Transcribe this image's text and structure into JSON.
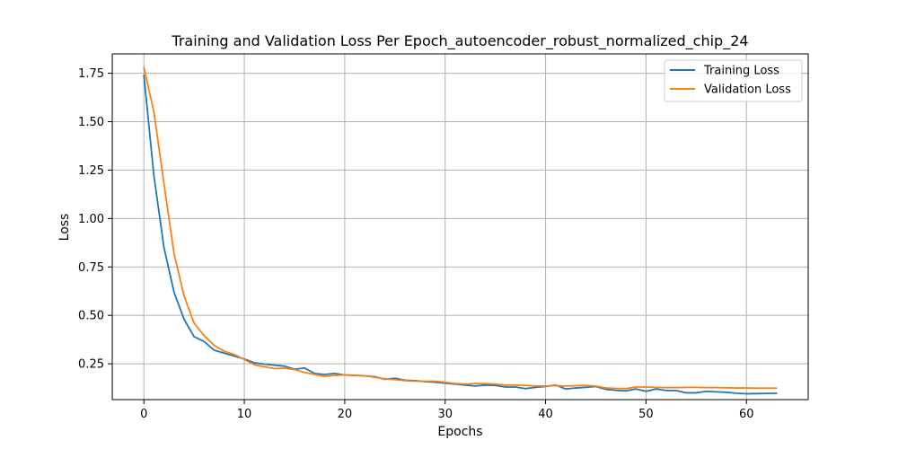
{
  "chart_data": {
    "type": "line",
    "title": "Training and Validation Loss Per Epoch_autoencoder_robust_normalized_chip_24",
    "xlabel": "Epochs",
    "ylabel": "Loss",
    "xlim": [
      -3.15,
      66.15
    ],
    "ylim": [
      0.065,
      1.85
    ],
    "xticks": [
      0,
      10,
      20,
      30,
      40,
      50,
      60
    ],
    "yticks": [
      0.25,
      0.5,
      0.75,
      1.0,
      1.25,
      1.5,
      1.75
    ],
    "xtick_labels": [
      "0",
      "10",
      "20",
      "30",
      "40",
      "50",
      "60"
    ],
    "ytick_labels": [
      "0.25",
      "0.50",
      "0.75",
      "1.00",
      "1.25",
      "1.50",
      "1.75"
    ],
    "grid": true,
    "legend_position": "top-right",
    "x": [
      0,
      1,
      2,
      3,
      4,
      5,
      6,
      7,
      8,
      9,
      10,
      11,
      12,
      13,
      14,
      15,
      16,
      17,
      18,
      19,
      20,
      21,
      22,
      23,
      24,
      25,
      26,
      27,
      28,
      29,
      30,
      31,
      32,
      33,
      34,
      35,
      36,
      37,
      38,
      39,
      40,
      41,
      42,
      43,
      44,
      45,
      46,
      47,
      48,
      49,
      50,
      51,
      52,
      53,
      54,
      55,
      56,
      57,
      58,
      59,
      60,
      61,
      62,
      63
    ],
    "series": [
      {
        "name": "Training Loss",
        "color": "#1f77b4",
        "values": [
          1.74,
          1.22,
          0.85,
          0.62,
          0.48,
          0.39,
          0.365,
          0.32,
          0.305,
          0.29,
          0.275,
          0.255,
          0.248,
          0.243,
          0.238,
          0.222,
          0.228,
          0.2,
          0.195,
          0.2,
          0.192,
          0.19,
          0.188,
          0.183,
          0.17,
          0.175,
          0.165,
          0.163,
          0.158,
          0.155,
          0.15,
          0.145,
          0.14,
          0.135,
          0.14,
          0.138,
          0.13,
          0.13,
          0.122,
          0.128,
          0.133,
          0.14,
          0.12,
          0.125,
          0.128,
          0.133,
          0.118,
          0.113,
          0.11,
          0.12,
          0.108,
          0.12,
          0.112,
          0.112,
          0.1,
          0.1,
          0.108,
          0.105,
          0.103,
          0.098,
          0.095,
          0.096,
          0.097,
          0.098
        ]
      },
      {
        "name": "Validation Loss",
        "color": "#ff7f0e",
        "values": [
          1.78,
          1.55,
          1.18,
          0.82,
          0.6,
          0.46,
          0.395,
          0.345,
          0.315,
          0.298,
          0.272,
          0.245,
          0.235,
          0.225,
          0.228,
          0.22,
          0.205,
          0.195,
          0.185,
          0.19,
          0.193,
          0.19,
          0.188,
          0.18,
          0.172,
          0.168,
          0.163,
          0.16,
          0.16,
          0.16,
          0.155,
          0.148,
          0.145,
          0.148,
          0.148,
          0.145,
          0.14,
          0.14,
          0.138,
          0.135,
          0.135,
          0.137,
          0.135,
          0.137,
          0.138,
          0.135,
          0.125,
          0.123,
          0.122,
          0.13,
          0.13,
          0.128,
          0.127,
          0.127,
          0.128,
          0.128,
          0.127,
          0.127,
          0.126,
          0.125,
          0.125,
          0.124,
          0.124,
          0.124
        ]
      }
    ]
  }
}
